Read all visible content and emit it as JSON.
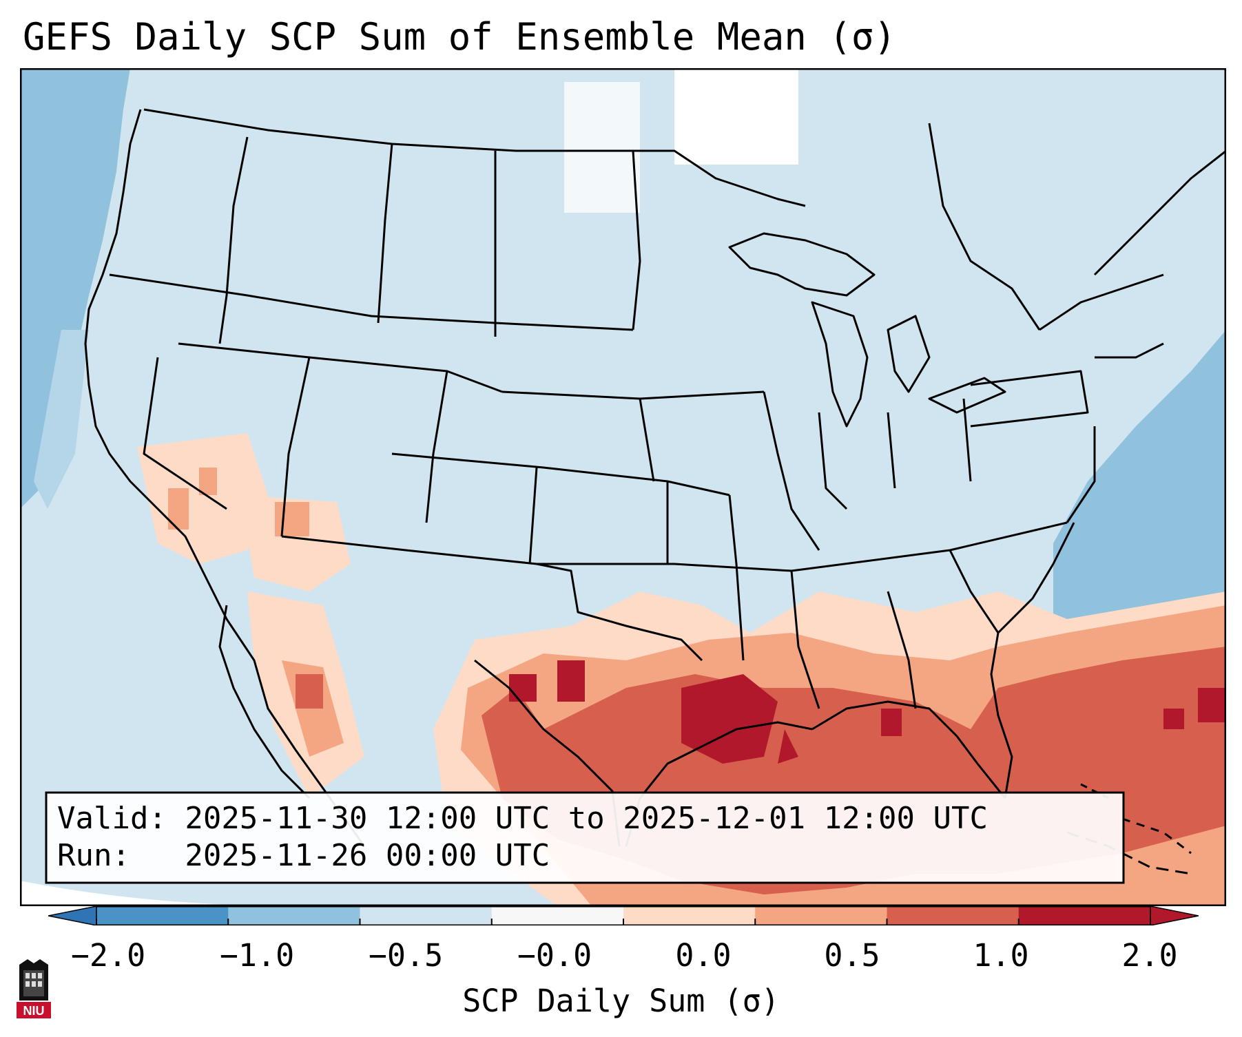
{
  "title": "GEFS Daily SCP Sum of Ensemble Mean (σ)",
  "info_box": {
    "valid_line": "Valid: 2025-11-30 12:00 UTC to 2025-12-01 12:00 UTC",
    "run_line": "Run:   2025-11-26 00:00 UTC"
  },
  "colorbar": {
    "label": "SCP Daily Sum (σ)",
    "ticks": [
      "−2.0",
      "−1.0",
      "−0.5",
      "−0.0",
      "0.0",
      "0.5",
      "1.0",
      "2.0"
    ],
    "bin_colors": [
      "#4a93c6",
      "#90c2de",
      "#d1e5f0",
      "#f7f7f7",
      "#fddbc7",
      "#f4a582",
      "#d6604d",
      "#b2182b"
    ],
    "extend_low_color": "#2f74b5",
    "extend_high_color": "#b2182b"
  },
  "map": {
    "region": "Continental United States",
    "ocean_pacific_color": "#90c2de",
    "ocean_atlantic_color": "#90c2de",
    "land_color": "#d1e5f0",
    "gulf_high_color": "#d6604d",
    "gulf_max_color": "#b2182b"
  },
  "logo": {
    "text": "NIU",
    "color": "#c8102e"
  }
}
